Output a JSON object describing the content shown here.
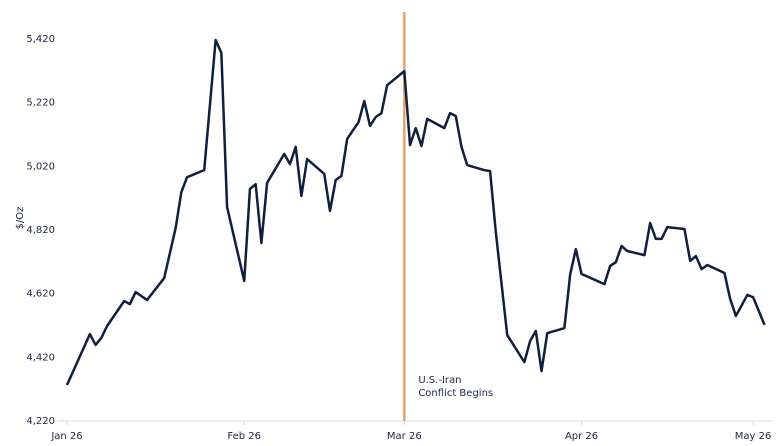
{
  "chart_data": {
    "type": "line",
    "y_label": "$/Oz",
    "x": [
      0,
      4,
      5,
      6,
      7,
      10,
      11,
      12,
      14,
      17,
      19,
      20,
      21,
      24,
      26,
      27,
      28,
      31,
      32,
      33,
      34,
      35,
      38,
      39,
      40,
      41,
      42,
      45,
      46,
      47,
      48,
      49,
      51,
      52,
      53,
      54,
      55,
      56,
      59,
      60,
      61,
      62,
      63,
      66,
      67,
      68,
      69,
      70,
      73,
      74,
      75,
      77,
      80,
      81,
      82,
      83,
      84,
      87,
      88,
      89,
      90,
      94,
      95,
      96,
      97,
      98,
      101,
      102,
      103,
      104,
      105,
      108,
      109,
      110,
      111,
      112,
      115,
      116,
      117,
      119,
      120,
      121,
      122
    ],
    "series": [
      {
        "color": "#0f1f3d",
        "values": [
          4333,
          4493,
          4459,
          4481,
          4518,
          4597,
          4587,
          4625,
          4600,
          4669,
          4826,
          4939,
          4986,
          5008,
          5417,
          5376,
          4892,
          4660,
          4949,
          4964,
          4779,
          4968,
          5059,
          5027,
          5081,
          4927,
          5043,
          4996,
          4880,
          4977,
          4990,
          5106,
          5159,
          5225,
          5147,
          5175,
          5187,
          5275,
          5319,
          5087,
          5140,
          5084,
          5169,
          5140,
          5187,
          5178,
          5081,
          5024,
          5008,
          5005,
          4814,
          4490,
          4405,
          4471,
          4503,
          4377,
          4496,
          4512,
          4679,
          4760,
          4682,
          4650,
          4707,
          4719,
          4770,
          4754,
          4741,
          4842,
          4792,
          4792,
          4829,
          4823,
          4723,
          4738,
          4697,
          4710,
          4685,
          4603,
          4550,
          4616,
          4609,
          4566,
          4522
        ]
      }
    ],
    "xlim": [
      0,
      122
    ],
    "xticks": [
      {
        "value": 0,
        "label": "Jan 26"
      },
      {
        "value": 31,
        "label": "Feb 26"
      },
      {
        "value": 59,
        "label": "Mar 26"
      },
      {
        "value": 90,
        "label": "Apr 26"
      },
      {
        "value": 120,
        "label": "May 26"
      }
    ],
    "ylim": [
      4220,
      5420
    ],
    "yticks": [
      {
        "value": 4220,
        "label": "4,220"
      },
      {
        "value": 4420,
        "label": "4,420"
      },
      {
        "value": 4620,
        "label": "4,620"
      },
      {
        "value": 4820,
        "label": "4,820"
      },
      {
        "value": 5020,
        "label": "5,020"
      },
      {
        "value": 5220,
        "label": "5,220"
      },
      {
        "value": 5420,
        "label": "5,420"
      }
    ],
    "annotation": {
      "x": 59,
      "color": "#e8a070",
      "lines": [
        "U.S.-Iran",
        "Conflict Begins"
      ]
    }
  }
}
